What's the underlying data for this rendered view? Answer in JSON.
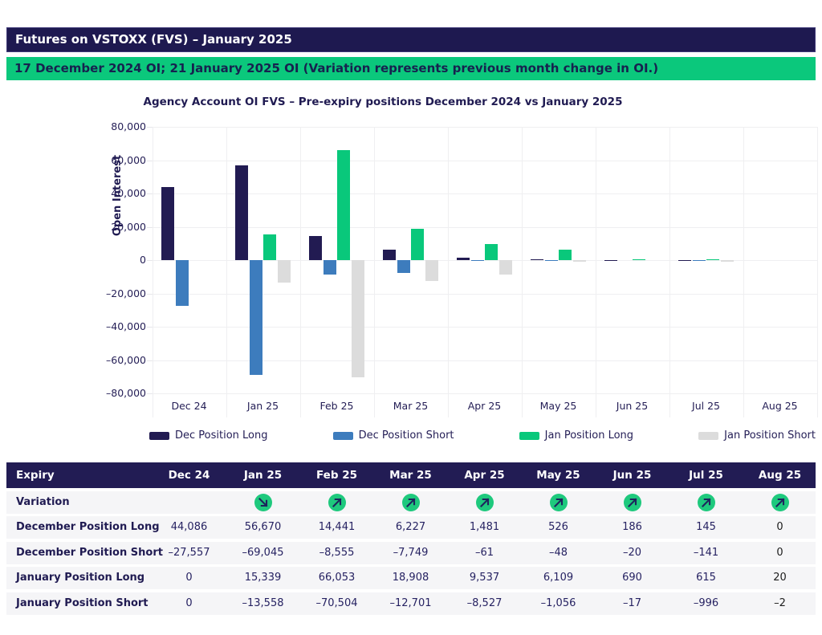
{
  "page": {
    "title_bar": "Futures on VSTOXX (FVS) – January 2025",
    "subtitle_bar": "17 December 2024 OI; 21 January 2025 OI (Variation represents previous month change in OI.)"
  },
  "colors": {
    "navy": "#221b52",
    "blue": "#3d7cbd",
    "green": "#09c87b",
    "gray": "#dcdcdc",
    "header_bar_navy": "#1e1950",
    "header_bar_green": "#0bc87c",
    "variation_circle_green": "#1ec97d",
    "row_background": "#f5f5f7"
  },
  "chart_data": {
    "type": "bar",
    "title": "Agency Account OI FVS – Pre-expiry positions December 2024 vs January 2025",
    "xlabel": "",
    "ylabel": "Open Interest",
    "categories": [
      "Dec 24",
      "Jan 25",
      "Feb 25",
      "Mar 25",
      "Apr 25",
      "May 25",
      "Jun 25",
      "Jul 25",
      "Aug 25"
    ],
    "series": [
      {
        "name": "Dec Position Long",
        "color": "#221b52",
        "values": [
          44086,
          56670,
          14441,
          6227,
          1481,
          526,
          186,
          145,
          0
        ]
      },
      {
        "name": "Dec Position Short",
        "color": "#3d7cbd",
        "values": [
          -27557,
          -69045,
          -8555,
          -7749,
          -61,
          -48,
          -20,
          -141,
          0
        ]
      },
      {
        "name": "Jan Position Long",
        "color": "#09c87b",
        "values": [
          0,
          15339,
          66053,
          18908,
          9537,
          6109,
          690,
          615,
          20
        ]
      },
      {
        "name": "Jan Position Short",
        "color": "#dcdcdc",
        "values": [
          0,
          -13558,
          -70504,
          -12701,
          -8527,
          -1056,
          -17,
          -996,
          -2
        ]
      }
    ],
    "ylim": [
      -80000,
      80000
    ],
    "ytick_step": 20000,
    "yticks": [
      "80,000",
      "60,000",
      "40,000",
      "20,000",
      "0",
      "–20,000",
      "–40,000",
      "–60,000",
      "–80,000"
    ],
    "grid": true,
    "legend_position": "bottom"
  },
  "table": {
    "header": [
      "Expiry",
      "Dec 24",
      "Jan 25",
      "Feb 25",
      "Mar 25",
      "Apr 25",
      "May 25",
      "Jun 25",
      "Jul 25",
      "Aug 25"
    ],
    "variation": {
      "label": "Variation",
      "icons": [
        "",
        "down-right",
        "up-right",
        "up-right",
        "up-right",
        "up-right",
        "up-right",
        "up-right",
        "up-right"
      ]
    },
    "rows": [
      {
        "label": "December Position Long",
        "values": [
          "44,086",
          "56,670",
          "14,441",
          "6,227",
          "1,481",
          "526",
          "186",
          "145",
          "0"
        ]
      },
      {
        "label": "December Position Short",
        "values": [
          "–27,557",
          "–69,045",
          "–8,555",
          "–7,749",
          "–61",
          "–48",
          "–20",
          "–141",
          "0"
        ]
      },
      {
        "label": "January Position Long",
        "values": [
          "0",
          "15,339",
          "66,053",
          "18,908",
          "9,537",
          "6,109",
          "690",
          "615",
          "20"
        ]
      },
      {
        "label": "January Position Short",
        "values": [
          "0",
          "–13,558",
          "–70,504",
          "–12,701",
          "–8,527",
          "–1,056",
          "–17",
          "–996",
          "–2"
        ]
      }
    ]
  }
}
